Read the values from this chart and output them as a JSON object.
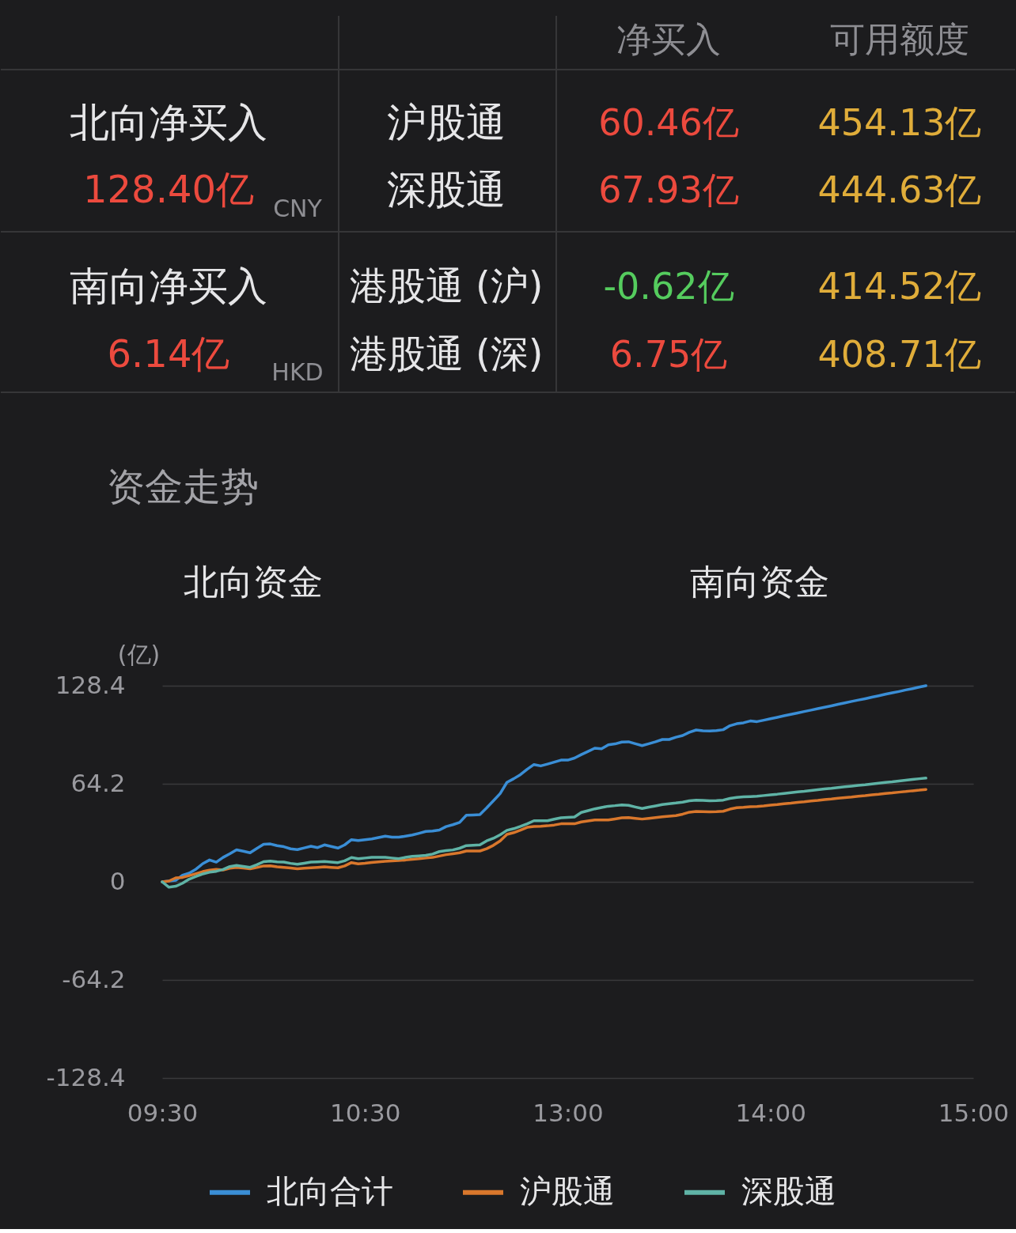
{
  "chart_data": [
    {
      "type": "other",
      "annotations": [
        "净买入",
        "可用额度",
        "北向净买入",
        "沪股通",
        "60.46亿",
        "454.13亿",
        "128.40亿",
        "CNY",
        "深股通",
        "67.93亿",
        "444.63亿",
        "南向净买入",
        "港股通 (沪)",
        "-0.62亿",
        "414.52亿",
        "6.14亿",
        "HKD",
        "港股通 (深)",
        "6.75亿",
        "408.71亿"
      ],
      "colors": [
        "#8e8e93",
        "#8e8e93",
        "#e6e6e8",
        "#e6e6e8",
        "#ec4a3e",
        "#e0ad3a",
        "#ec4a3e",
        "#8e8e93",
        "#e6e6e8",
        "#ec4a3e",
        "#e0ad3a",
        "#e6e6e8",
        "#e6e6e8",
        "#55cc5e",
        "#e0ad3a",
        "#ec4a3e",
        "#8e8e93",
        "#e6e6e8",
        "#ec4a3e",
        "#e0ad3a"
      ]
    },
    {
      "type": "line",
      "title": "资金走势",
      "annotations": [
        "北向资金",
        "南向资金"
      ],
      "ylabel": "(亿)",
      "categories": [
        "09:30",
        null,
        null,
        null,
        null,
        null,
        null,
        null,
        null,
        null,
        null,
        null,
        null,
        null,
        null,
        null,
        null,
        null,
        null,
        null,
        null,
        null,
        null,
        null,
        null,
        null,
        null,
        null,
        null,
        null,
        "10:30",
        null,
        null,
        null,
        null,
        null,
        null,
        null,
        null,
        null,
        null,
        null,
        null,
        null,
        null,
        null,
        null,
        null,
        null,
        null,
        null,
        null,
        null,
        null,
        null,
        null,
        null,
        null,
        null,
        null,
        "13:00",
        null,
        null,
        null,
        null,
        null,
        null,
        null,
        null,
        null,
        null,
        null,
        null,
        null,
        null,
        null,
        null,
        null,
        null,
        null,
        null,
        null,
        null,
        null,
        null,
        null,
        null,
        null,
        null,
        null,
        "14:00",
        null,
        null,
        null,
        null,
        null,
        null,
        null,
        null,
        null,
        null,
        null,
        null,
        null,
        null,
        null,
        null,
        null,
        null,
        null,
        null,
        null,
        null,
        null,
        null,
        null,
        null,
        null,
        null,
        null,
        "15:00"
      ],
      "ylim": [
        -128.4,
        128.4
      ],
      "yticks": [
        -128.4,
        -64.2,
        0,
        64.2,
        128.4
      ],
      "grid": "y",
      "legend": "bottom",
      "series": [
        {
          "name": "北向合计",
          "color": "#3a8ed6",
          "values": [
            0,
            0.5,
            1.0,
            4.3,
            5.7,
            8.3,
            11.9,
            14.3,
            12.9,
            16.0,
            18.4,
            21.0,
            20.1,
            19.0,
            21.9,
            24.6,
            24.8,
            23.7,
            23.0,
            21.6,
            21.1,
            22.2,
            23.3,
            22.4,
            24.2,
            23.2,
            22.1,
            24.2,
            27.6,
            27.0,
            27.6,
            28.1,
            29.0,
            29.9,
            29.2,
            29.2,
            29.9,
            30.7,
            31.8,
            33.0,
            33.3,
            33.9,
            36.2,
            37.4,
            38.9,
            43.6,
            43.8,
            44.0,
            48.4,
            53.1,
            57.8,
            65.1,
            67.5,
            70.2,
            73.7,
            76.8,
            75.9,
            77.1,
            78.4,
            79.7,
            79.7,
            81.0,
            83.3,
            85.4,
            87.5,
            87.1,
            89.7,
            90.3,
            91.5,
            91.7,
            90.4,
            89.2,
            90.4,
            91.7,
            93.2,
            93.2,
            94.7,
            95.8,
            97.9,
            99.4,
            98.9,
            98.8,
            99.0,
            99.6,
            102.2,
            103.5,
            104.1,
            105.3,
            104.9,
            105.8,
            106.8,
            107.7,
            108.7,
            109.6,
            110.5,
            111.5,
            112.4,
            113.4,
            114.3,
            115.2,
            116.2,
            117.1,
            118.1,
            119.0,
            119.9,
            120.9,
            121.8,
            122.8,
            123.7,
            124.6,
            125.6,
            126.5,
            127.5,
            128.4,
            null,
            null,
            null,
            null,
            null,
            null,
            null
          ]
        },
        {
          "name": "沪股通",
          "color": "#d9772c",
          "values": [
            0,
            0.5,
            2.6,
            2.9,
            4.1,
            5.4,
            6.7,
            7.6,
            8.1,
            7.8,
            8.9,
            9.4,
            9.0,
            8.5,
            9.4,
            10.4,
            10.5,
            9.8,
            9.4,
            9.0,
            8.6,
            8.9,
            9.2,
            9.5,
            9.8,
            9.5,
            9.2,
            10.4,
            12.6,
            11.8,
            12.2,
            12.7,
            13.1,
            13.4,
            13.7,
            14.0,
            14.3,
            14.7,
            15.1,
            15.6,
            16.0,
            16.9,
            17.8,
            18.4,
            19.0,
            20.2,
            20.2,
            20.2,
            21.7,
            23.9,
            26.8,
            31.1,
            32.2,
            33.8,
            35.7,
            36.2,
            36.4,
            36.7,
            37.2,
            38.0,
            38.0,
            38.0,
            39.2,
            39.9,
            40.5,
            40.5,
            40.5,
            41.2,
            41.9,
            42.1,
            41.6,
            41.1,
            41.6,
            42.1,
            42.6,
            43.0,
            43.4,
            44.3,
            45.6,
            46.1,
            46.0,
            45.8,
            45.9,
            46.2,
            47.6,
            48.5,
            48.8,
            49.2,
            49.3,
            49.7,
            50.2,
            50.6,
            51.1,
            51.5,
            52.0,
            52.4,
            52.9,
            53.3,
            53.8,
            54.2,
            54.7,
            55.1,
            55.5,
            56.0,
            56.4,
            56.9,
            57.3,
            57.8,
            58.2,
            58.7,
            59.1,
            59.6,
            60.0,
            60.5,
            null,
            null,
            null,
            null,
            null,
            null,
            null
          ]
        },
        {
          "name": "深股通",
          "color": "#5fb3a6",
          "values": [
            0,
            -3.5,
            -2.9,
            -0.9,
            1.8,
            3.5,
            5.2,
            6.3,
            6.9,
            8.1,
            10.0,
            10.7,
            10.1,
            9.5,
            11.2,
            13.2,
            13.6,
            13.1,
            12.9,
            12.1,
            11.5,
            12.2,
            12.9,
            13.1,
            13.3,
            13.0,
            12.6,
            13.8,
            15.9,
            15.1,
            15.6,
            16.0,
            16.0,
            16.0,
            15.6,
            15.2,
            16.0,
            16.7,
            17.0,
            17.3,
            18.2,
            19.8,
            20.4,
            20.9,
            22.0,
            23.7,
            24.0,
            24.2,
            26.8,
            28.5,
            30.8,
            33.7,
            34.8,
            36.3,
            38.0,
            40.0,
            40.0,
            40.0,
            41.0,
            41.9,
            42.2,
            42.5,
            45.4,
            46.6,
            47.8,
            48.7,
            49.5,
            49.9,
            50.4,
            50.1,
            49.0,
            48.0,
            48.9,
            49.7,
            50.6,
            51.1,
            51.6,
            52.2,
            53.1,
            53.4,
            53.3,
            53.1,
            53.2,
            53.5,
            54.6,
            55.3,
            55.6,
            55.8,
            56.0,
            56.5,
            57.0,
            57.4,
            57.9,
            58.4,
            58.9,
            59.3,
            59.8,
            60.3,
            60.8,
            61.2,
            61.7,
            62.2,
            62.7,
            63.2,
            63.6,
            64.1,
            64.6,
            65.1,
            65.5,
            66.0,
            66.5,
            67.0,
            67.5,
            67.9,
            null,
            null,
            null,
            null,
            null,
            null,
            null
          ]
        }
      ]
    }
  ]
}
